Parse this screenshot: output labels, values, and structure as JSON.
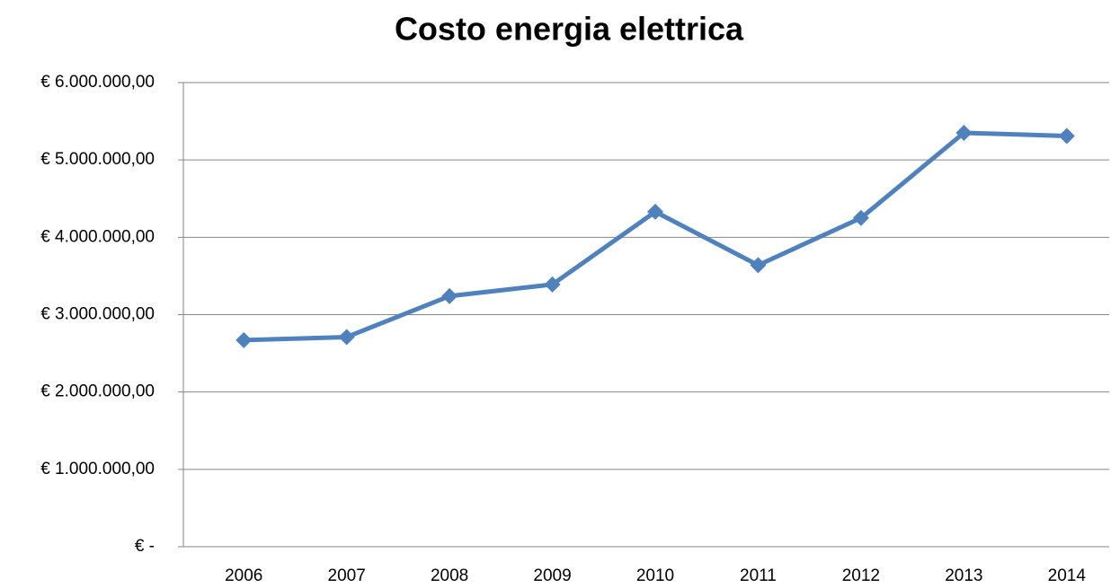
{
  "chart_data": {
    "type": "line",
    "title": "Costo energia elettrica",
    "categories": [
      "2006",
      "2007",
      "2008",
      "2009",
      "2010",
      "2011",
      "2012",
      "2013",
      "2014"
    ],
    "series": [
      {
        "name": "Costo energia elettrica",
        "color": "#4f81bd",
        "values": [
          2670000,
          2710000,
          3240000,
          3390000,
          4330000,
          3640000,
          4250000,
          5350000,
          5310000
        ]
      }
    ],
    "ylim": [
      0,
      6000000
    ],
    "yticks": [
      {
        "value": 0,
        "label": "€ -"
      },
      {
        "value": 1000000,
        "label": "€ 1.000.000,00"
      },
      {
        "value": 2000000,
        "label": "€ 2.000.000,00"
      },
      {
        "value": 3000000,
        "label": "€ 3.000.000,00"
      },
      {
        "value": 4000000,
        "label": "€ 4.000.000,00"
      },
      {
        "value": 5000000,
        "label": "€ 5.000.000,00"
      },
      {
        "value": 6000000,
        "label": "€ 6.000.000,00"
      }
    ],
    "grid": true
  }
}
